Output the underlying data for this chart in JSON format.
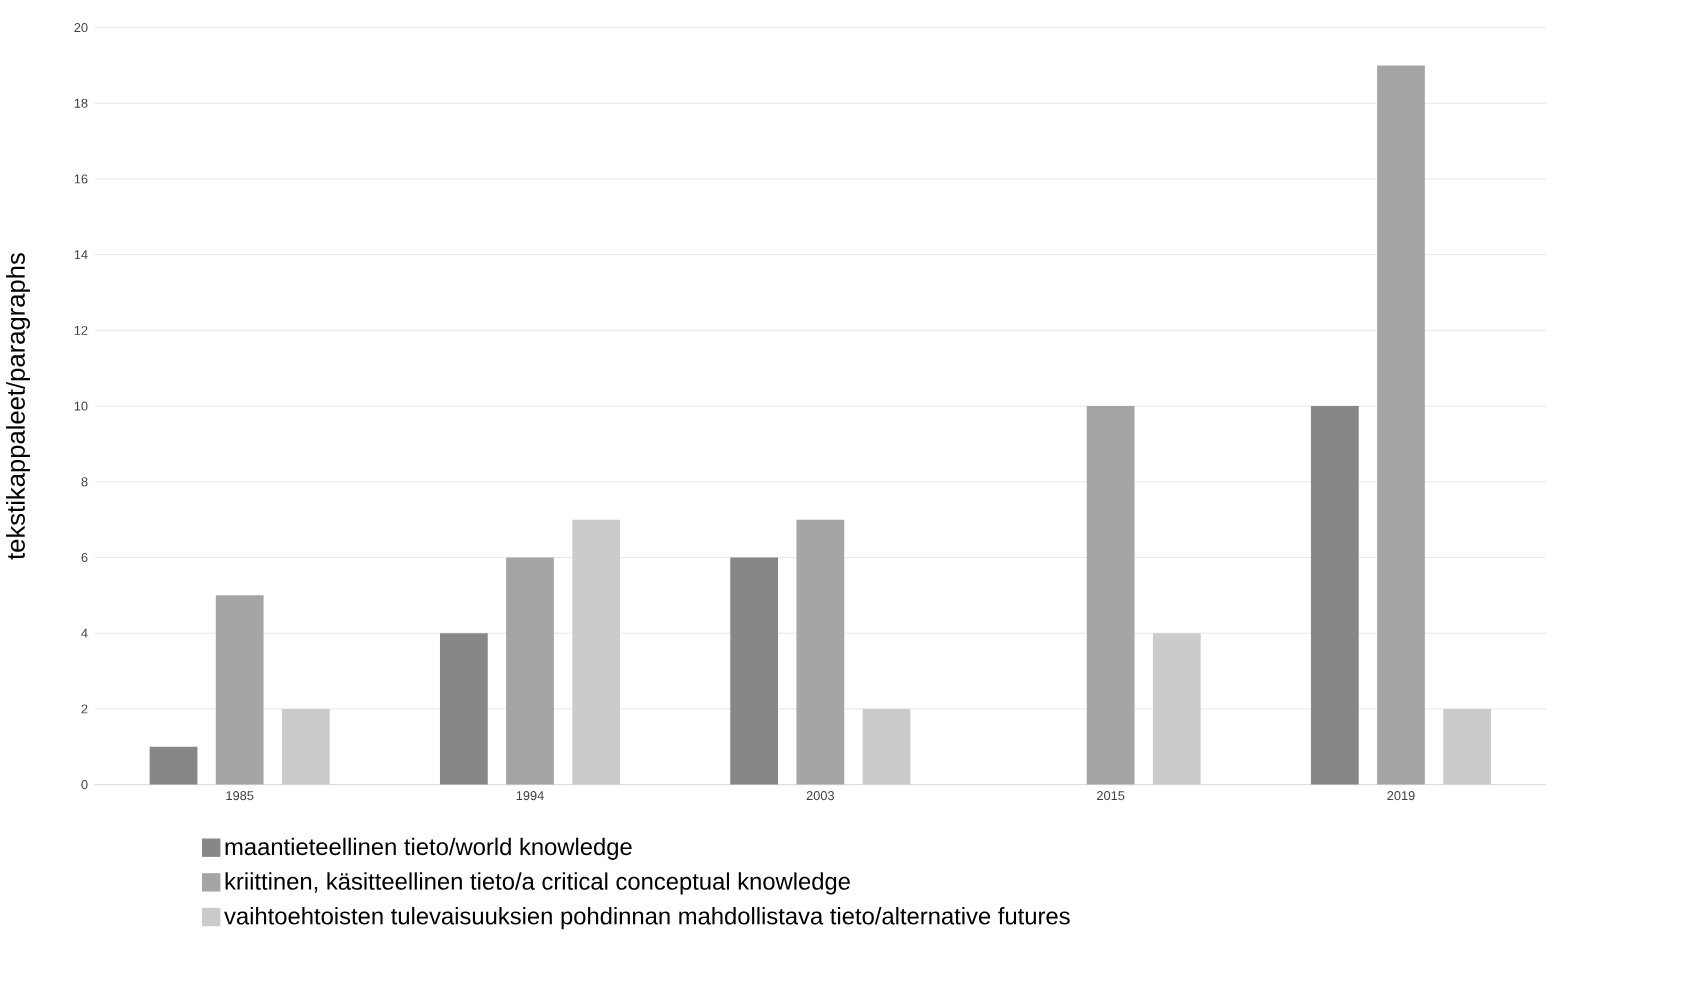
{
  "chart_data": {
    "type": "bar",
    "ylabel": "tekstikappaleet/paragraphs",
    "categories": [
      "1985",
      "1994",
      "2003",
      "2015",
      "2019"
    ],
    "series": [
      {
        "name": "maantieteellinen tieto/world knowledge",
        "color": "#878787",
        "values": [
          1,
          4,
          6,
          0,
          10
        ]
      },
      {
        "name": "kriittinen, käsitteellinen tieto/a critical conceptual knowledge",
        "color": "#a5a5a5",
        "values": [
          5,
          6,
          7,
          10,
          19
        ]
      },
      {
        "name": "vaihtoehtoisten tulevaisuuksien pohdinnan mahdollistava tieto/alternative futures",
        "color": "#cbcbcb",
        "values": [
          2,
          7,
          2,
          4,
          2
        ]
      }
    ],
    "ylim": [
      0,
      20
    ],
    "yticks": [
      0,
      2,
      4,
      6,
      8,
      10,
      12,
      14,
      16,
      18,
      20
    ],
    "grid": "y",
    "legend": "bottom"
  }
}
